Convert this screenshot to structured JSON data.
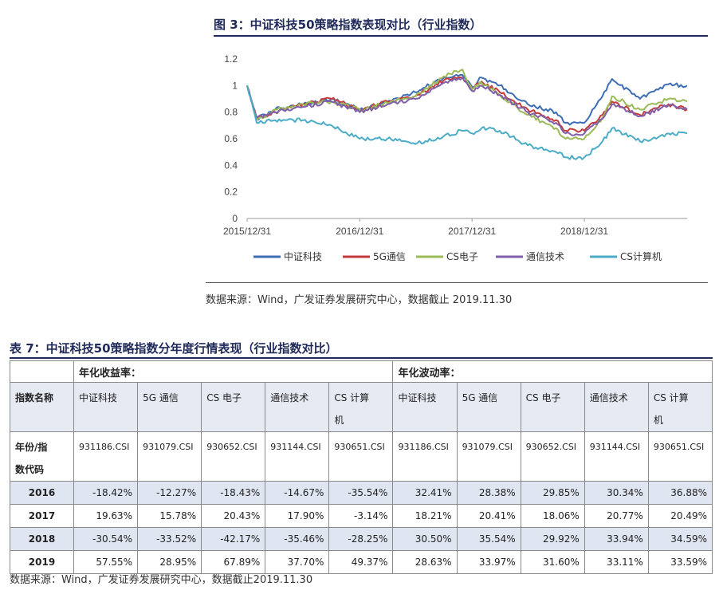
{
  "figure": {
    "title": "图 3：中证科技50策略指数表现对比（行业指数）",
    "source": "数据来源：Wind，广发证券发展研究中心，数据截止 2019.11.30"
  },
  "chart_data": {
    "type": "line",
    "title": "",
    "xlabel": "",
    "ylabel": "",
    "x_range": [
      "2015-12-31",
      "2019-11-30"
    ],
    "x_ticks": [
      "2015/12/31",
      "2016/12/31",
      "2017/12/31",
      "2018/12/31"
    ],
    "y_ticks": [
      "0",
      "0.2",
      "0.4",
      "0.6",
      "0.8",
      "1",
      "1.2"
    ],
    "ylim": [
      0,
      1.2
    ],
    "grid": false,
    "legend": "bottom",
    "x_dates": [
      "2015-12-31",
      "2016-01-31",
      "2016-03-31",
      "2016-06-30",
      "2016-09-30",
      "2016-12-31",
      "2017-03-31",
      "2017-06-30",
      "2017-09-30",
      "2017-11-30",
      "2017-12-31",
      "2018-01-31",
      "2018-03-31",
      "2018-06-30",
      "2018-09-30",
      "2018-10-31",
      "2018-12-31",
      "2019-02-28",
      "2019-03-31",
      "2019-06-30",
      "2019-09-30",
      "2019-11-30"
    ],
    "series": [
      {
        "name": "中证科技",
        "color": "#3d6eb5",
        "values": [
          1.0,
          0.75,
          0.82,
          0.86,
          0.9,
          0.82,
          0.88,
          0.95,
          1.06,
          1.08,
          0.99,
          1.06,
          1.0,
          0.86,
          0.8,
          0.72,
          0.72,
          0.92,
          1.05,
          0.9,
          1.01,
          1.0
        ]
      },
      {
        "name": "5G通信",
        "color": "#c43b3b",
        "values": [
          1.0,
          0.75,
          0.8,
          0.86,
          0.9,
          0.82,
          0.88,
          0.92,
          1.04,
          1.06,
          0.98,
          1.03,
          0.95,
          0.82,
          0.74,
          0.66,
          0.66,
          0.78,
          0.88,
          0.78,
          0.86,
          0.82
        ]
      },
      {
        "name": "CS电子",
        "color": "#9bbb59",
        "values": [
          1.0,
          0.74,
          0.82,
          0.86,
          0.88,
          0.82,
          0.87,
          0.92,
          1.07,
          1.12,
          0.97,
          1.02,
          0.93,
          0.78,
          0.68,
          0.6,
          0.6,
          0.76,
          0.92,
          0.82,
          0.9,
          0.88
        ]
      },
      {
        "name": "通信技术",
        "color": "#7f5fa8",
        "values": [
          1.0,
          0.76,
          0.8,
          0.84,
          0.88,
          0.8,
          0.86,
          0.9,
          1.02,
          1.06,
          0.96,
          1.0,
          0.93,
          0.8,
          0.72,
          0.64,
          0.64,
          0.75,
          0.86,
          0.77,
          0.85,
          0.82
        ]
      },
      {
        "name": "CS计算机",
        "color": "#4bacc6",
        "values": [
          1.0,
          0.72,
          0.74,
          0.74,
          0.7,
          0.6,
          0.6,
          0.56,
          0.62,
          0.66,
          0.64,
          0.68,
          0.66,
          0.55,
          0.5,
          0.46,
          0.46,
          0.58,
          0.68,
          0.58,
          0.64,
          0.64
        ]
      }
    ]
  },
  "table": {
    "title": "表 7：中证科技50策略指数分年度行情表现（行业指数对比）",
    "group_return": "年化收益率：",
    "group_vol": "年化波动率：",
    "row_label_name": "指数名称",
    "row_label_code": [
      "年份/指",
      "数代码"
    ],
    "names": [
      [
        "中证科技"
      ],
      [
        "5G 通信"
      ],
      [
        "CS 电子"
      ],
      [
        "通信技术"
      ],
      [
        "CS 计算",
        "机"
      ],
      [
        "中证科技"
      ],
      [
        "5G 通信"
      ],
      [
        "CS 电子"
      ],
      [
        "通信技术"
      ],
      [
        "CS 计算",
        "机"
      ]
    ],
    "codes": [
      "931186.CSI",
      "931079.CSI",
      "930652.CSI",
      "931144.CSI",
      "930651.CSI",
      "931186.CSI",
      "931079.CSI",
      "930652.CSI",
      "931144.CSI",
      "930651.CSI"
    ],
    "rows": [
      {
        "year": "2016",
        "cells": [
          "-18.42%",
          "-12.27%",
          "-18.43%",
          "-14.67%",
          "-35.54%",
          "32.41%",
          "28.38%",
          "29.85%",
          "30.34%",
          "36.88%"
        ]
      },
      {
        "year": "2017",
        "cells": [
          "19.63%",
          "15.78%",
          "20.43%",
          "17.90%",
          "-3.14%",
          "18.21%",
          "20.41%",
          "18.06%",
          "20.77%",
          "20.49%"
        ]
      },
      {
        "year": "2018",
        "cells": [
          "-30.54%",
          "-33.52%",
          "-42.17%",
          "-35.46%",
          "-28.25%",
          "30.50%",
          "35.54%",
          "29.92%",
          "33.94%",
          "34.59%"
        ]
      },
      {
        "year": "2019",
        "cells": [
          "57.55%",
          "28.95%",
          "67.89%",
          "37.70%",
          "49.37%",
          "28.63%",
          "33.97%",
          "31.60%",
          "33.11%",
          "33.59%"
        ]
      }
    ],
    "source": "数据来源：Wind，广发证券发展研究中心，数据截止2019.11.30"
  }
}
